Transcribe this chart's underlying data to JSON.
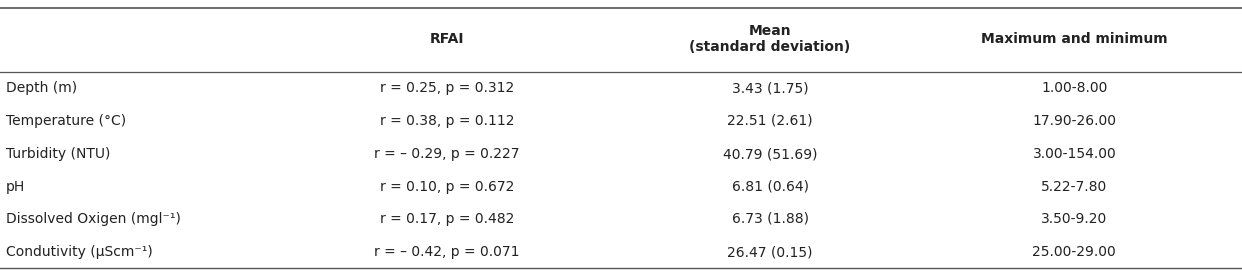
{
  "col_headers": [
    "RFAI",
    "Mean\n(standard deviation)",
    "Maximum and minimum"
  ],
  "row_labels": [
    "Depth (m)",
    "Temperature (°C)",
    "Turbidity (NTU)",
    "pH",
    "Dissolved Oxigen (mgl⁻¹)",
    "Condutivity (μScm⁻¹)"
  ],
  "rfai_col": [
    "r = 0.25, p = 0.312",
    "r = 0.38, p = 0.112",
    "r = – 0.29, p = 0.227",
    "r = 0.10, p = 0.672",
    "r = 0.17, p = 0.482",
    "r = – 0.42, p = 0.071"
  ],
  "mean_col": [
    "3.43 (1.75)",
    "22.51 (2.61)",
    "40.79 (51.69)",
    "6.81 (0.64)",
    "6.73 (1.88)",
    "26.47 (0.15)"
  ],
  "maxmin_col": [
    "1.00-8.00",
    "17.90-26.00",
    "3.00-154.00",
    "5.22-7.80",
    "3.50-9.20",
    "25.00-29.00"
  ],
  "background_color": "#ffffff",
  "header_fontsize": 10,
  "cell_fontsize": 10,
  "text_color": "#222222",
  "line_color": "#555555",
  "fig_width": 12.42,
  "fig_height": 2.76,
  "dpi": 100
}
